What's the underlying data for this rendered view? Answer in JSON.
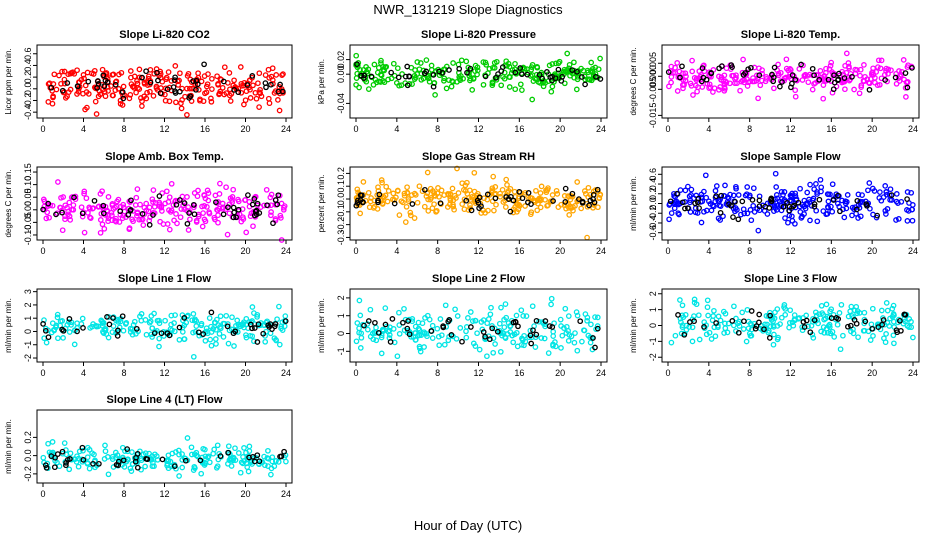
{
  "figure": {
    "title": "NWR_131219  Slope Diagnostics",
    "xlabel": "Hour of Day (UTC)"
  },
  "chart_data": [
    {
      "type": "scatter",
      "title": "Slope Li-820 CO2",
      "ylabel": "Licor ppm per min.",
      "color": "#ff0000",
      "point_color": "#000000",
      "xlim": [
        0,
        24
      ],
      "ylim": [
        -0.5,
        0.75
      ],
      "xticks": [
        "0",
        "4",
        "8",
        "12",
        "16",
        "20",
        "24"
      ],
      "yticks": [
        {
          "v": -0.4,
          "t": "-0.4"
        },
        {
          "v": -0.2,
          "t": "-0.2"
        },
        {
          "v": 0,
          "t": "0.0"
        },
        {
          "v": 0.2,
          "t": "0.2"
        },
        {
          "v": 0.4,
          "t": "0.4"
        },
        {
          "v": 0.6,
          "t": "0.6"
        }
      ],
      "center": 0.05,
      "spread": 0.18,
      "n": 260,
      "series_note": ""
    },
    {
      "type": "scatter",
      "title": "Slope Li-820 Pressure",
      "ylabel": "kPa per min.",
      "color": "#00cc00",
      "point_color": "#000000",
      "xlim": [
        0,
        24
      ],
      "ylim": [
        -0.06,
        0.04
      ],
      "xticks": [
        "0",
        "4",
        "8",
        "12",
        "16",
        "20",
        "24"
      ],
      "yticks": [
        {
          "v": -0.04,
          "t": "-0.04"
        },
        {
          "v": 0,
          "t": "0.00"
        },
        {
          "v": 0.02,
          "t": "0.02"
        }
      ],
      "center": 0.0,
      "spread": 0.01,
      "n": 260,
      "series_note": ""
    },
    {
      "type": "scatter",
      "title": "Slope Li-820 Temp.",
      "ylabel": "degrees C per min.",
      "color": "#ff00ff",
      "point_color": "#000000",
      "xlim": [
        0,
        24
      ],
      "ylim": [
        -0.016,
        0.012
      ],
      "xticks": [
        "0",
        "4",
        "8",
        "12",
        "16",
        "20",
        "24"
      ],
      "yticks": [
        {
          "v": -0.015,
          "t": "-0.015"
        },
        {
          "v": -0.005,
          "t": "-0.005"
        },
        {
          "v": 0,
          "t": "0.000"
        },
        {
          "v": 0.005,
          "t": "0.005"
        }
      ],
      "center": 0.0,
      "spread": 0.003,
      "n": 260,
      "series_note": ""
    },
    {
      "type": "scatter",
      "title": "Slope Amb. Box Temp.",
      "ylabel": "degrees C per min.",
      "color": "#ff00ff",
      "point_color": "#000000",
      "xlim": [
        0,
        24
      ],
      "ylim": [
        -0.12,
        0.17
      ],
      "xticks": [
        "0",
        "4",
        "8",
        "12",
        "16",
        "20",
        "24"
      ],
      "yticks": [
        {
          "v": -0.1,
          "t": "-0.10"
        },
        {
          "v": -0.05,
          "t": "-0.05"
        },
        {
          "v": 0,
          "t": "0.00"
        },
        {
          "v": 0.05,
          "t": "0.05"
        },
        {
          "v": 0.1,
          "t": "0.10"
        },
        {
          "v": 0.15,
          "t": "0.15"
        }
      ],
      "center": 0.0,
      "spread": 0.04,
      "n": 260,
      "series_note": ""
    },
    {
      "type": "scatter",
      "title": "Slope Gas Stream RH",
      "ylabel": "percent per min.",
      "color": "#ffa500",
      "point_color": "#000000",
      "xlim": [
        0,
        24
      ],
      "ylim": [
        -0.32,
        0.25
      ],
      "xticks": [
        "0",
        "4",
        "8",
        "12",
        "16",
        "20",
        "24"
      ],
      "yticks": [
        {
          "v": -0.3,
          "t": "-0.3"
        },
        {
          "v": -0.2,
          "t": "-0.2"
        },
        {
          "v": -0.1,
          "t": "-0.1"
        },
        {
          "v": 0,
          "t": "0.0"
        },
        {
          "v": 0.1,
          "t": "0.1"
        },
        {
          "v": 0.2,
          "t": "0.2"
        }
      ],
      "center": 0.0,
      "spread": 0.07,
      "n": 260,
      "series_note": ""
    },
    {
      "type": "scatter",
      "title": "Slope Sample Flow",
      "ylabel": "ml/min per min.",
      "color": "#0000ff",
      "point_color": "#000000",
      "xlim": [
        0,
        24
      ],
      "ylim": [
        -0.75,
        0.75
      ],
      "xticks": [
        "0",
        "4",
        "8",
        "12",
        "16",
        "20",
        "24"
      ],
      "yticks": [
        {
          "v": -0.6,
          "t": "-0.6"
        },
        {
          "v": -0.4,
          "t": "-0.4"
        },
        {
          "v": -0.2,
          "t": "-0.2"
        },
        {
          "v": 0,
          "t": "0.0"
        },
        {
          "v": 0.2,
          "t": "0.2"
        },
        {
          "v": 0.4,
          "t": "0.4"
        },
        {
          "v": 0.6,
          "t": "0.6"
        }
      ],
      "center": 0.0,
      "spread": 0.2,
      "n": 260,
      "series_note": ""
    },
    {
      "type": "scatter",
      "title": "Slope Line 1 Flow",
      "ylabel": "ml/min per min.",
      "color": "#00e5e5",
      "point_color": "#000000",
      "xlim": [
        0,
        24
      ],
      "ylim": [
        -2.3,
        3.2
      ],
      "xticks": [
        "0",
        "4",
        "8",
        "12",
        "16",
        "20",
        "24"
      ],
      "yticks": [
        {
          "v": -2,
          "t": "-2"
        },
        {
          "v": -1,
          "t": "-1"
        },
        {
          "v": 0,
          "t": "0"
        },
        {
          "v": 1,
          "t": "1"
        },
        {
          "v": 2,
          "t": "2"
        },
        {
          "v": 3,
          "t": "3"
        }
      ],
      "center": 0.3,
      "spread": 0.6,
      "n": 220,
      "series_note": ""
    },
    {
      "type": "scatter",
      "title": "Slope Line 2 Flow",
      "ylabel": "ml/min per min.",
      "color": "#00e5e5",
      "point_color": "#000000",
      "xlim": [
        0,
        24
      ],
      "ylim": [
        -1.6,
        2.5
      ],
      "xticks": [
        "0",
        "4",
        "8",
        "12",
        "16",
        "20",
        "24"
      ],
      "yticks": [
        {
          "v": -1,
          "t": "-1"
        },
        {
          "v": 0,
          "t": "0"
        },
        {
          "v": 1,
          "t": "1"
        },
        {
          "v": 2,
          "t": "2"
        }
      ],
      "center": 0.2,
      "spread": 0.6,
      "n": 220,
      "series_note": ""
    },
    {
      "type": "scatter",
      "title": "Slope Line 3 Flow",
      "ylabel": "ml/min per min.",
      "color": "#00e5e5",
      "point_color": "#000000",
      "xlim": [
        0,
        24
      ],
      "ylim": [
        -2.3,
        2.3
      ],
      "xticks": [
        "0",
        "4",
        "8",
        "12",
        "16",
        "20",
        "24"
      ],
      "yticks": [
        {
          "v": -2,
          "t": "-2"
        },
        {
          "v": -1,
          "t": "-1"
        },
        {
          "v": 0,
          "t": "0"
        },
        {
          "v": 1,
          "t": "1"
        },
        {
          "v": 2,
          "t": "2"
        }
      ],
      "center": 0.2,
      "spread": 0.6,
      "n": 220,
      "series_note": ""
    },
    {
      "type": "scatter",
      "title": "Slope Line 4 (LT) Flow",
      "ylabel": "ml/min per min.",
      "color": "#00e5e5",
      "point_color": "#000000",
      "xlim": [
        0,
        24
      ],
      "ylim": [
        -0.3,
        0.5
      ],
      "xticks": [
        "0",
        "4",
        "8",
        "12",
        "16",
        "20",
        "24"
      ],
      "yticks": [
        {
          "v": -0.2,
          "t": "-0.2"
        },
        {
          "v": 0,
          "t": "0.0"
        },
        {
          "v": 0.2,
          "t": "0.2"
        }
      ],
      "center": -0.03,
      "spread": 0.07,
      "n": 220,
      "series_note": ""
    }
  ]
}
